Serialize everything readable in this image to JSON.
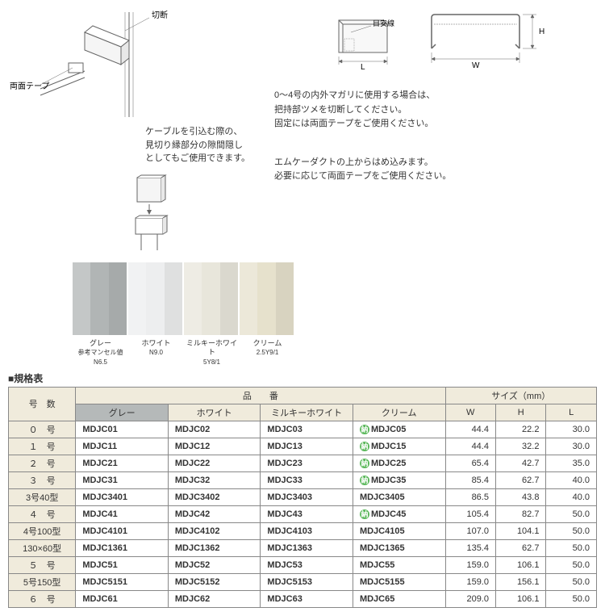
{
  "labels": {
    "cut": "切断",
    "tape": "両面テープ",
    "guideline": "目安線"
  },
  "desc1": [
    "ケーブルを引込む際の、",
    "見切り縁部分の隙間隠し",
    "としてもご使用できます。"
  ],
  "right_p1": [
    "0～4号の内外マガリに使用する場合は、",
    "把持部ツメを切断してください。",
    "固定には両面テープをご使用ください。"
  ],
  "right_p2": [
    "エムケーダクトの上からはめ込みます。",
    "必要に応じて両面テープをご使用ください。"
  ],
  "swatches": [
    {
      "color": "#b1b5b5",
      "name": "グレー",
      "sub": "参考マンセル値\nN6.5"
    },
    {
      "color": "#edeeef",
      "name": "ホワイト",
      "sub": "N9.0"
    },
    {
      "color": "#e8e6db",
      "name": "ミルキーホワイト",
      "sub": "5Y8/1"
    },
    {
      "color": "#e6e1cc",
      "name": "クリーム",
      "sub": "2.5Y9/1"
    }
  ],
  "section_title": "■規格表",
  "table": {
    "headers": {
      "gosu": "号　数",
      "hinban": "品　　番",
      "size": "サイズ（mm）",
      "gray": "グレー",
      "white": "ホワイト",
      "milky": "ミルキーホワイト",
      "cream": "クリーム",
      "w": "W",
      "h": "H",
      "l": "L"
    },
    "rows": [
      {
        "g": "０　号",
        "c": [
          "MDJC01",
          "MDJC02",
          "MDJC03",
          "MDJC05"
        ],
        "mark": true,
        "s": [
          "44.4",
          "22.2",
          "30.0"
        ]
      },
      {
        "g": "１　号",
        "c": [
          "MDJC11",
          "MDJC12",
          "MDJC13",
          "MDJC15"
        ],
        "mark": true,
        "s": [
          "44.4",
          "32.2",
          "30.0"
        ]
      },
      {
        "g": "２　号",
        "c": [
          "MDJC21",
          "MDJC22",
          "MDJC23",
          "MDJC25"
        ],
        "mark": true,
        "s": [
          "65.4",
          "42.7",
          "35.0"
        ]
      },
      {
        "g": "３　号",
        "c": [
          "MDJC31",
          "MDJC32",
          "MDJC33",
          "MDJC35"
        ],
        "mark": true,
        "s": [
          "85.4",
          "62.7",
          "40.0"
        ]
      },
      {
        "g": "3号40型",
        "c": [
          "MDJC3401",
          "MDJC3402",
          "MDJC3403",
          "MDJC3405"
        ],
        "mark": false,
        "s": [
          "86.5",
          "43.8",
          "40.0"
        ]
      },
      {
        "g": "４　号",
        "c": [
          "MDJC41",
          "MDJC42",
          "MDJC43",
          "MDJC45"
        ],
        "mark": true,
        "s": [
          "105.4",
          "82.7",
          "50.0"
        ]
      },
      {
        "g": "4号100型",
        "c": [
          "MDJC4101",
          "MDJC4102",
          "MDJC4103",
          "MDJC4105"
        ],
        "mark": false,
        "s": [
          "107.0",
          "104.1",
          "50.0"
        ]
      },
      {
        "g": "130×60型",
        "c": [
          "MDJC1361",
          "MDJC1362",
          "MDJC1363",
          "MDJC1365"
        ],
        "mark": false,
        "s": [
          "135.4",
          "62.7",
          "50.0"
        ]
      },
      {
        "g": "５　号",
        "c": [
          "MDJC51",
          "MDJC52",
          "MDJC53",
          "MDJC55"
        ],
        "mark": false,
        "s": [
          "159.0",
          "106.1",
          "50.0"
        ]
      },
      {
        "g": "5号150型",
        "c": [
          "MDJC5151",
          "MDJC5152",
          "MDJC5153",
          "MDJC5155"
        ],
        "mark": false,
        "s": [
          "159.0",
          "156.1",
          "50.0"
        ]
      },
      {
        "g": "６　号",
        "c": [
          "MDJC61",
          "MDJC62",
          "MDJC63",
          "MDJC65"
        ],
        "mark": false,
        "s": [
          "209.0",
          "106.1",
          "50.0"
        ]
      }
    ]
  }
}
